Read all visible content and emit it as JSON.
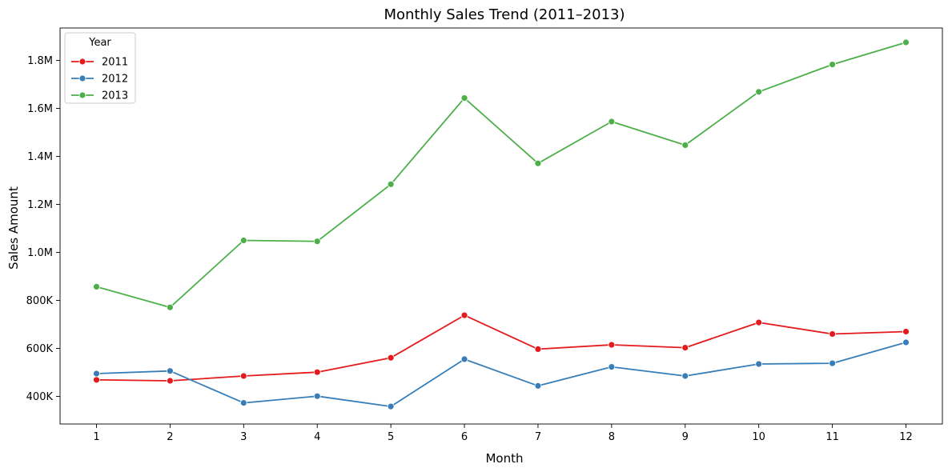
{
  "chart_data": {
    "type": "line",
    "title": "Monthly Sales Trend (2011–2013)",
    "xlabel": "Month",
    "ylabel": "Sales Amount",
    "x": [
      1,
      2,
      3,
      4,
      5,
      6,
      7,
      8,
      9,
      10,
      11,
      12
    ],
    "ylim": [
      285000,
      1935000
    ],
    "y_ticks": [
      400000,
      600000,
      800000,
      1000000,
      1200000,
      1400000,
      1600000,
      1800000
    ],
    "y_tick_labels": [
      "400K",
      "600K",
      "800K",
      "1.0M",
      "1.2M",
      "1.4M",
      "1.6M",
      "1.8M"
    ],
    "grid": false,
    "legend": {
      "title": "Year",
      "position": "top-left"
    },
    "series": [
      {
        "name": "2011",
        "color": "#e41a1c",
        "marker": "circle",
        "values": [
          469000,
          465000,
          485000,
          501000,
          561000,
          738000,
          597000,
          615000,
          603000,
          708000,
          660000,
          670000
        ]
      },
      {
        "name": "2012",
        "color": "#377eb8",
        "marker": "circle",
        "values": [
          495000,
          506000,
          373000,
          401000,
          358000,
          555000,
          444000,
          523000,
          485000,
          535000,
          538000,
          625000
        ]
      },
      {
        "name": "2013",
        "color": "#4daf4a",
        "marker": "circle",
        "values": [
          857000,
          771000,
          1050000,
          1046000,
          1284000,
          1643000,
          1371000,
          1545000,
          1447000,
          1669000,
          1783000,
          1875000
        ]
      }
    ]
  }
}
